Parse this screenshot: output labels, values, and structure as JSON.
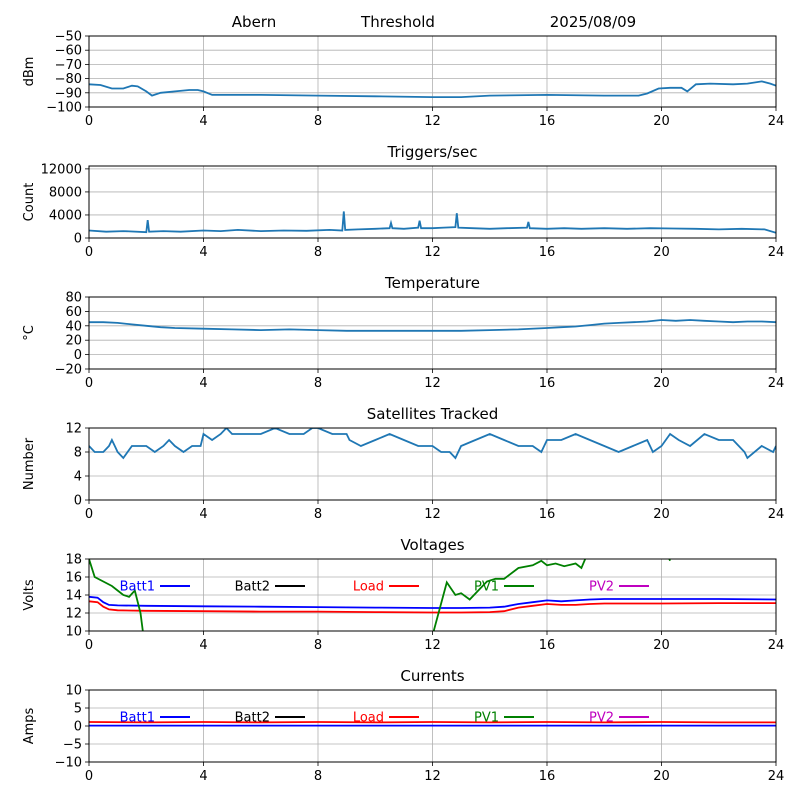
{
  "header": {
    "station": "Abern",
    "label": "Threshold",
    "date": "2025/08/09"
  },
  "colors": {
    "series_default": "#1f77b4",
    "grid": "#b0b0b0",
    "axis": "#000000",
    "Batt1": "#0000ff",
    "Batt2": "#000000",
    "Load": "#ff0000",
    "PV1": "#008000",
    "PV2": "#bf00bf"
  },
  "chart_data": [
    {
      "type": "line",
      "title": "",
      "xlabel": "",
      "ylabel": "dBm",
      "xlim": [
        0,
        24
      ],
      "ylim": [
        -100,
        -50
      ],
      "xticks": [
        "0",
        "4",
        "8",
        "12",
        "16",
        "20",
        "24"
      ],
      "yticks": [
        "-50",
        "-60",
        "-70",
        "-80",
        "-90",
        "-100"
      ],
      "grid": true,
      "series": [
        {
          "x": [
            0,
            0.4,
            0.8,
            1.2,
            1.5,
            1.7,
            2.0,
            2.2,
            2.5,
            3.0,
            3.5,
            3.8,
            4.0,
            4.3,
            6,
            8,
            10,
            12,
            13,
            14,
            16,
            18,
            19.2,
            19.5,
            19.9,
            20.3,
            20.7,
            20.9,
            21.2,
            21.7,
            22.5,
            23.0,
            23.5,
            23.8,
            24
          ],
          "y": [
            -84,
            -84.5,
            -87,
            -87,
            -85,
            -85.5,
            -89,
            -92,
            -90,
            -89,
            -88,
            -88,
            -89,
            -91.5,
            -91.5,
            -92,
            -92.5,
            -93,
            -93,
            -92,
            -91.5,
            -92,
            -92,
            -90.5,
            -87,
            -86.5,
            -86.5,
            -89,
            -84,
            -83.5,
            -84,
            -83.5,
            -82,
            -83.5,
            -85
          ]
        }
      ]
    },
    {
      "type": "line",
      "title": "Triggers/sec",
      "xlabel": "",
      "ylabel": "Count",
      "xlim": [
        0,
        24
      ],
      "ylim": [
        0,
        12500
      ],
      "xticks": [
        "0",
        "4",
        "8",
        "12",
        "16",
        "20",
        "24"
      ],
      "yticks": [
        "0",
        "4000",
        "8000",
        "12000"
      ],
      "grid": true,
      "series": [
        {
          "x": [
            0,
            0.6,
            1.2,
            2.0,
            2.05,
            2.1,
            2.6,
            3.2,
            4.0,
            4.6,
            5.2,
            6.0,
            6.8,
            7.6,
            8.4,
            8.85,
            8.9,
            8.95,
            9.4,
            10.0,
            10.5,
            10.55,
            10.6,
            11.0,
            11.5,
            11.55,
            11.6,
            12.0,
            12.4,
            12.8,
            12.85,
            12.9,
            13.4,
            14.0,
            14.6,
            15.3,
            15.35,
            15.4,
            16.0,
            16.6,
            17.2,
            18.0,
            18.8,
            19.6,
            20.4,
            21.2,
            22.0,
            22.8,
            23.6,
            24.0
          ],
          "y": [
            1300,
            1100,
            1200,
            1000,
            3100,
            1100,
            1200,
            1100,
            1300,
            1200,
            1400,
            1200,
            1300,
            1250,
            1400,
            1300,
            4600,
            1400,
            1500,
            1600,
            1700,
            2600,
            1700,
            1600,
            1800,
            3000,
            1700,
            1700,
            1800,
            1900,
            4300,
            1800,
            1700,
            1600,
            1700,
            1800,
            2800,
            1700,
            1600,
            1700,
            1600,
            1700,
            1600,
            1700,
            1650,
            1600,
            1500,
            1600,
            1500,
            900
          ]
        }
      ]
    },
    {
      "type": "line",
      "title": "Temperature",
      "xlabel": "",
      "ylabel": "°C",
      "xlim": [
        0,
        24
      ],
      "ylim": [
        -20,
        80
      ],
      "xticks": [
        "0",
        "4",
        "8",
        "12",
        "16",
        "20",
        "24"
      ],
      "yticks": [
        "-20",
        "0",
        "20",
        "40",
        "60",
        "80"
      ],
      "grid": true,
      "series": [
        {
          "x": [
            0,
            0.5,
            1.0,
            1.5,
            2.0,
            2.5,
            3.0,
            4.0,
            5.0,
            6.0,
            7.0,
            8.0,
            9.0,
            10.0,
            11.0,
            12.0,
            13.0,
            14.0,
            15.0,
            16.0,
            16.5,
            17.0,
            17.5,
            18.0,
            18.5,
            19.0,
            19.5,
            20.0,
            20.5,
            21.0,
            21.5,
            22.0,
            22.5,
            23.0,
            23.5,
            24.0
          ],
          "y": [
            45,
            45,
            44,
            42,
            40,
            38,
            37,
            36,
            35,
            34,
            35,
            34,
            33,
            33,
            33,
            33,
            33,
            34,
            35,
            37,
            38,
            39,
            41,
            43,
            44,
            45,
            46,
            48,
            47,
            48,
            47,
            46,
            45,
            46,
            46,
            45
          ]
        }
      ]
    },
    {
      "type": "line",
      "title": "Satellites Tracked",
      "xlabel": "",
      "ylabel": "Number",
      "xlim": [
        0,
        24
      ],
      "ylim": [
        0,
        12
      ],
      "xticks": [
        "0",
        "4",
        "8",
        "12",
        "16",
        "20",
        "24"
      ],
      "yticks": [
        "0",
        "4",
        "8",
        "12"
      ],
      "grid": true,
      "series": [
        {
          "x": [
            0,
            0.2,
            0.5,
            0.7,
            0.8,
            0.9,
            1.0,
            1.2,
            1.5,
            2.0,
            2.3,
            2.6,
            2.8,
            3.0,
            3.3,
            3.6,
            3.9,
            4.0,
            4.3,
            4.6,
            4.8,
            5.0,
            5.3,
            5.6,
            6.0,
            6.5,
            7.0,
            7.5,
            7.8,
            8.0,
            8.5,
            9.0,
            9.1,
            9.5,
            10.0,
            10.5,
            11.0,
            11.5,
            12.0,
            12.3,
            12.6,
            12.8,
            13.0,
            13.5,
            14.0,
            14.5,
            15.0,
            15.5,
            15.8,
            16.0,
            16.5,
            17.0,
            17.5,
            18.0,
            18.5,
            19.0,
            19.5,
            19.7,
            20.0,
            20.3,
            20.6,
            21.0,
            21.5,
            22.0,
            22.5,
            22.7,
            22.9,
            23.0,
            23.5,
            23.9,
            24.0
          ],
          "y": [
            9,
            8,
            8,
            9,
            10,
            9,
            8,
            7,
            9,
            9,
            8,
            9,
            10,
            9,
            8,
            9,
            9,
            11,
            10,
            11,
            12,
            11,
            11,
            11,
            11,
            12,
            11,
            11,
            12,
            12,
            11,
            11,
            10,
            9,
            10,
            11,
            10,
            9,
            9,
            8,
            8,
            7,
            9,
            10,
            11,
            10,
            9,
            9,
            8,
            10,
            10,
            11,
            10,
            9,
            8,
            9,
            10,
            8,
            9,
            11,
            10,
            9,
            11,
            10,
            10,
            9,
            8,
            7,
            9,
            8,
            9
          ]
        }
      ]
    },
    {
      "type": "line",
      "title": "Voltages",
      "xlabel": "",
      "ylabel": "Volts",
      "xlim": [
        0,
        24
      ],
      "ylim": [
        10,
        18
      ],
      "xticks": [
        "0",
        "4",
        "8",
        "12",
        "16",
        "20",
        "24"
      ],
      "yticks": [
        "10",
        "12",
        "14",
        "16",
        "18"
      ],
      "grid": true,
      "legend": "top",
      "series": [
        {
          "name": "Batt1",
          "color_key": "Batt1",
          "x": [
            0,
            0.3,
            0.5,
            0.7,
            1.0,
            2.0,
            4.0,
            6.0,
            8.0,
            10.0,
            12.0,
            13.0,
            14.0,
            14.5,
            15.0,
            15.5,
            16.0,
            16.5,
            17.0,
            17.5,
            18.0,
            20.0,
            22.0,
            24.0
          ],
          "y": [
            13.8,
            13.7,
            13.2,
            12.9,
            12.85,
            12.8,
            12.75,
            12.7,
            12.65,
            12.6,
            12.55,
            12.55,
            12.6,
            12.7,
            13.0,
            13.2,
            13.4,
            13.3,
            13.4,
            13.5,
            13.55,
            13.55,
            13.55,
            13.5
          ]
        },
        {
          "name": "Batt2",
          "color_key": "Batt2",
          "x": [],
          "y": []
        },
        {
          "name": "Load",
          "color_key": "Load",
          "x": [
            0,
            0.3,
            0.5,
            0.7,
            1.0,
            2.0,
            4.0,
            6.0,
            8.0,
            10.0,
            12.0,
            13.0,
            14.0,
            14.5,
            15.0,
            15.5,
            16.0,
            16.5,
            17.0,
            17.5,
            18.0,
            20.0,
            22.0,
            24.0
          ],
          "y": [
            13.3,
            13.2,
            12.7,
            12.4,
            12.3,
            12.25,
            12.2,
            12.15,
            12.15,
            12.1,
            12.05,
            12.05,
            12.1,
            12.2,
            12.6,
            12.8,
            13.0,
            12.9,
            12.9,
            13.0,
            13.05,
            13.05,
            13.1,
            13.1
          ]
        },
        {
          "name": "PV1",
          "color_key": "PV1",
          "x": [
            0,
            0.2,
            0.5,
            0.8,
            1.0,
            1.2,
            1.4,
            1.6,
            1.8,
            1.9,
            12.0,
            12.5,
            12.8,
            13.0,
            13.3,
            13.6,
            13.9,
            14.2,
            14.5,
            15.0,
            15.5,
            15.8,
            16.0,
            16.3,
            16.6,
            17.0,
            17.2,
            17.4,
            20.2,
            20.3
          ],
          "y": [
            18.0,
            16.0,
            15.5,
            15.0,
            14.5,
            14.0,
            13.8,
            14.5,
            12.0,
            9.5,
            9.5,
            15.4,
            14.0,
            14.2,
            13.5,
            14.5,
            15.5,
            15.8,
            15.8,
            17.0,
            17.3,
            17.8,
            17.3,
            17.5,
            17.2,
            17.5,
            17.0,
            18.5,
            18.5,
            17.8
          ]
        },
        {
          "name": "PV2",
          "color_key": "PV2",
          "x": [],
          "y": []
        }
      ]
    },
    {
      "type": "line",
      "title": "Currents",
      "xlabel": "",
      "ylabel": "Amps",
      "xlim": [
        0,
        24
      ],
      "ylim": [
        -10,
        10
      ],
      "xticks": [
        "0",
        "4",
        "8",
        "12",
        "16",
        "20",
        "24"
      ],
      "yticks": [
        "-10",
        "-5",
        "0",
        "5",
        "10"
      ],
      "grid": true,
      "legend": "top",
      "series": [
        {
          "name": "Batt1",
          "color_key": "Batt1",
          "x": [
            0,
            4,
            8,
            12,
            16,
            20,
            24
          ],
          "y": [
            0.1,
            0.1,
            0.1,
            0.1,
            0.1,
            0.1,
            0.1
          ]
        },
        {
          "name": "Batt2",
          "color_key": "Batt2",
          "x": [],
          "y": []
        },
        {
          "name": "Load",
          "color_key": "Load",
          "x": [
            0,
            2,
            4,
            6,
            8,
            10,
            12,
            14,
            16,
            18,
            20,
            22,
            24
          ],
          "y": [
            1.1,
            1.0,
            1.1,
            1.0,
            1.1,
            1.0,
            1.1,
            1.0,
            1.1,
            1.0,
            1.1,
            1.0,
            1.0
          ]
        },
        {
          "name": "PV1",
          "color_key": "PV1",
          "x": [],
          "y": []
        },
        {
          "name": "PV2",
          "color_key": "PV2",
          "x": [],
          "y": []
        }
      ]
    }
  ]
}
